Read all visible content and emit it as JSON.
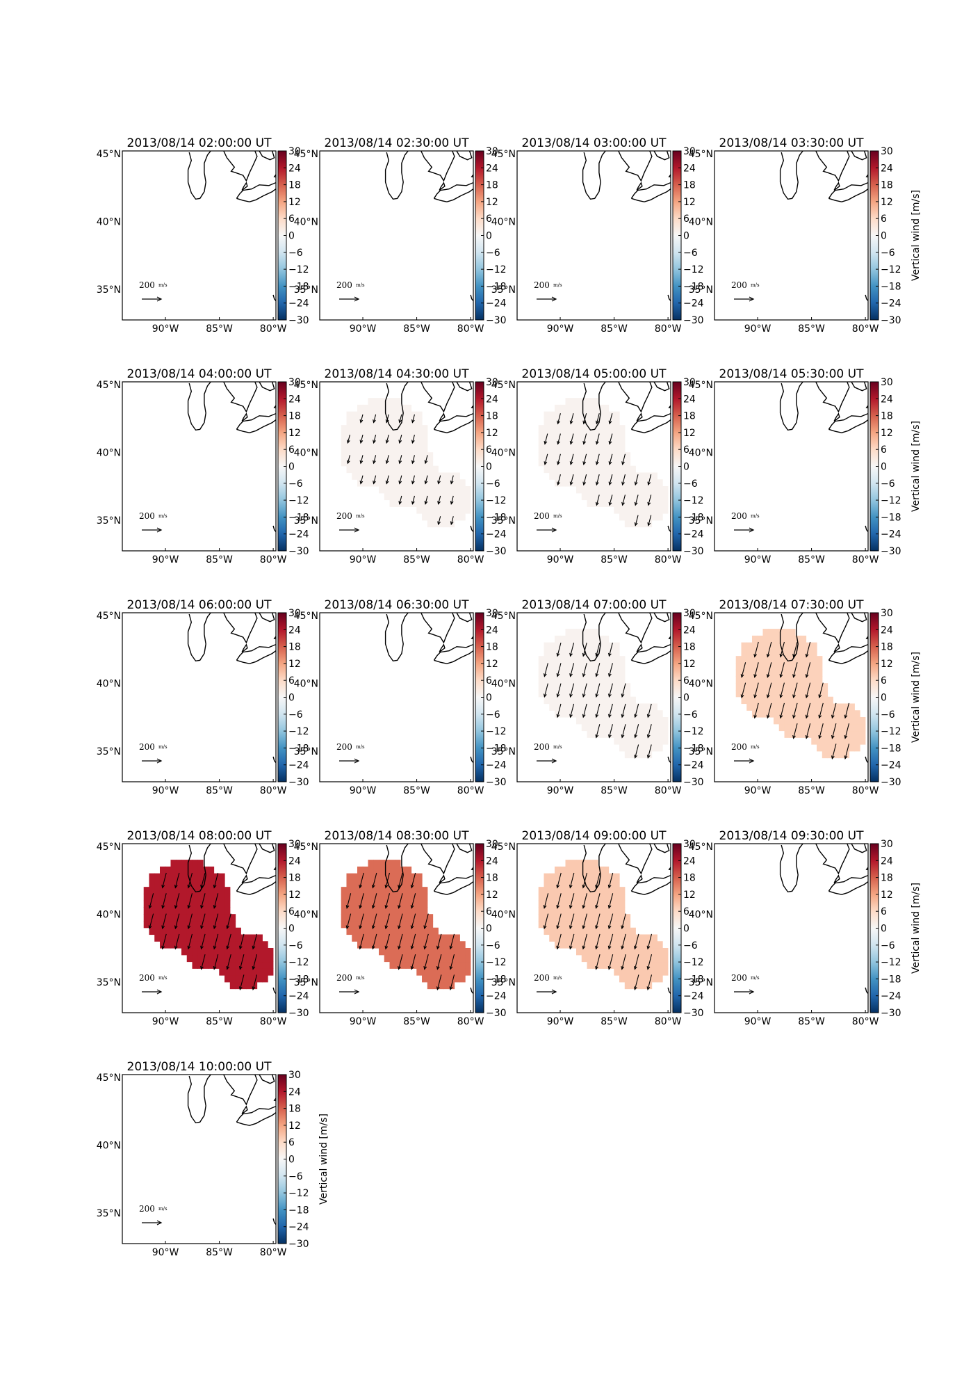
{
  "figure": {
    "colorbar": {
      "label": "Vertical wind [m/s]",
      "ticks": [
        "30",
        "24",
        "18",
        "12",
        "6",
        "0",
        "−6",
        "−12",
        "−18",
        "−24",
        "−30"
      ],
      "range": [
        -30,
        30
      ],
      "colormap": "RdBu_r"
    },
    "map_axes": {
      "x_ticks": [
        "90°W",
        "85°W",
        "80°W"
      ],
      "y_ticks": [
        "45°N",
        "40°N",
        "35°N"
      ]
    },
    "quiver_key": {
      "value": "200",
      "units": "m/s"
    },
    "panels": [
      {
        "title": "2013/08/14 02:00:00 UT",
        "vertical_wind": null,
        "show_cbar_label": false,
        "arrow_len": 0
      },
      {
        "title": "2013/08/14 02:30:00 UT",
        "vertical_wind": null,
        "show_cbar_label": false,
        "arrow_len": 0
      },
      {
        "title": "2013/08/14 03:00:00 UT",
        "vertical_wind": null,
        "show_cbar_label": false,
        "arrow_len": 0
      },
      {
        "title": "2013/08/14 03:30:00 UT",
        "vertical_wind": null,
        "show_cbar_label": true,
        "arrow_len": 0
      },
      {
        "title": "2013/08/14 04:00:00 UT",
        "vertical_wind": null,
        "show_cbar_label": false,
        "arrow_len": 0
      },
      {
        "title": "2013/08/14 04:30:00 UT",
        "vertical_wind": 1,
        "show_cbar_label": false,
        "arrow_len": 0.55
      },
      {
        "title": "2013/08/14 05:00:00 UT",
        "vertical_wind": 1,
        "show_cbar_label": false,
        "arrow_len": 0.7
      },
      {
        "title": "2013/08/14 05:30:00 UT",
        "vertical_wind": null,
        "show_cbar_label": true,
        "arrow_len": 0
      },
      {
        "title": "2013/08/14 06:00:00 UT",
        "vertical_wind": null,
        "show_cbar_label": false,
        "arrow_len": 0
      },
      {
        "title": "2013/08/14 06:30:00 UT",
        "vertical_wind": null,
        "show_cbar_label": false,
        "arrow_len": 0
      },
      {
        "title": "2013/08/14 07:00:00 UT",
        "vertical_wind": 1,
        "show_cbar_label": false,
        "arrow_len": 0.9
      },
      {
        "title": "2013/08/14 07:30:00 UT",
        "vertical_wind": 7,
        "show_cbar_label": true,
        "arrow_len": 1
      },
      {
        "title": "2013/08/14 08:00:00 UT",
        "vertical_wind": 24,
        "show_cbar_label": false,
        "arrow_len": 1
      },
      {
        "title": "2013/08/14 08:30:00 UT",
        "vertical_wind": 17,
        "show_cbar_label": false,
        "arrow_len": 1
      },
      {
        "title": "2013/08/14 09:00:00 UT",
        "vertical_wind": 8,
        "show_cbar_label": false,
        "arrow_len": 1
      },
      {
        "title": "2013/08/14 09:30:00 UT",
        "vertical_wind": null,
        "show_cbar_label": true,
        "arrow_len": 0
      },
      {
        "title": "2013/08/14 10:00:00 UT",
        "vertical_wind": null,
        "show_cbar_label": true,
        "arrow_len": 0
      }
    ]
  }
}
